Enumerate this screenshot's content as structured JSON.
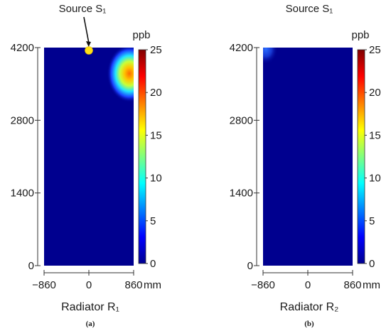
{
  "chart_data": [
    {
      "type": "heatmap",
      "panel_label": "(a)",
      "title": "",
      "xlabel": "Radiator R₁",
      "x_unit": "mm",
      "ylabel": "",
      "xlim": [
        -860,
        860
      ],
      "ylim": [
        0,
        4200
      ],
      "x_ticks": [
        "−860",
        "0",
        "860"
      ],
      "y_ticks": [
        "0",
        "1400",
        "2800",
        "4200"
      ],
      "colorbar": {
        "label": "ppb",
        "range": [
          0,
          25
        ],
        "ticks": [
          "0",
          "5",
          "10",
          "15",
          "20",
          "25"
        ]
      },
      "hotspots": [
        {
          "x": 860,
          "y": 3700,
          "peak": 22
        }
      ],
      "annotation": {
        "text": "Source S₁",
        "marker_x": 0,
        "marker_y": 4200,
        "marker_color": "#ffe017"
      }
    },
    {
      "type": "heatmap",
      "panel_label": "(b)",
      "title": "Source S₁",
      "xlabel": "Radiator R₂",
      "x_unit": "mm",
      "ylabel": "",
      "xlim": [
        -860,
        860
      ],
      "ylim": [
        0,
        4200
      ],
      "x_ticks": [
        "−860",
        "0",
        "860"
      ],
      "y_ticks": [
        "0",
        "1400",
        "2800",
        "4200"
      ],
      "colorbar": {
        "label": "ppb",
        "range": [
          0,
          25
        ],
        "ticks": [
          "0",
          "5",
          "10",
          "15",
          "20",
          "25"
        ]
      },
      "hotspots": [
        {
          "x": -860,
          "y": 4200,
          "peak": 4
        }
      ]
    }
  ]
}
